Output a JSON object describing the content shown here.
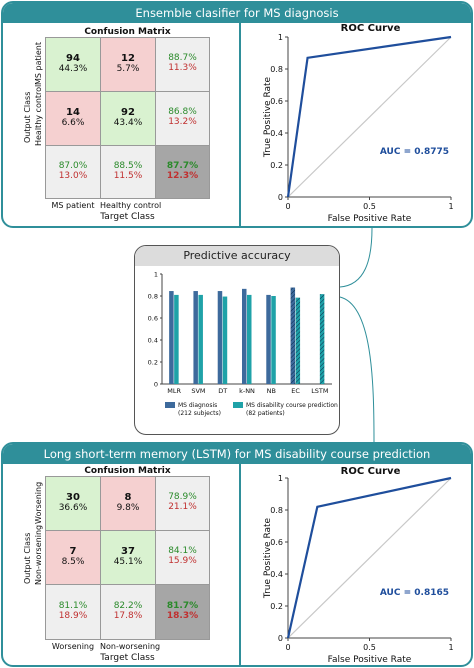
{
  "panels": {
    "top_title": "Ensemble clasifier for MS diagnosis",
    "bottom_title": "Long short-term memory (LSTM) for MS disability course prediction",
    "middle_title": "Predictive accuracy"
  },
  "chart_data": [
    {
      "type": "table",
      "title": "Confusion Matrix",
      "ylabel": "Output Class",
      "xlabel": "Target Class",
      "row_labels": [
        "MS patient",
        "Healthy control"
      ],
      "col_labels": [
        "MS patient",
        "Healthy control"
      ],
      "cells": [
        [
          {
            "n": "94",
            "p": "44.3%"
          },
          {
            "n": "12",
            "p": "5.7%"
          },
          {
            "g": "88.7%",
            "r": "11.3%"
          }
        ],
        [
          {
            "n": "14",
            "p": "6.6%"
          },
          {
            "n": "92",
            "p": "43.4%"
          },
          {
            "g": "86.8%",
            "r": "13.2%"
          }
        ],
        [
          {
            "g": "87.0%",
            "r": "13.0%"
          },
          {
            "g": "88.5%",
            "r": "11.5%"
          },
          {
            "g": "87.7%",
            "r": "12.3%"
          }
        ]
      ]
    },
    {
      "type": "line",
      "title": "ROC Curve",
      "xlabel": "False Positive Rate",
      "ylabel": "True Positive Rate",
      "x": [
        0,
        0.12,
        1
      ],
      "y": [
        0,
        0.87,
        1
      ],
      "xlim": [
        0,
        1
      ],
      "ylim": [
        0,
        1
      ],
      "xticks": [
        "0",
        "0.5",
        "1"
      ],
      "yticks": [
        "0",
        "0.2",
        "0.4",
        "0.6",
        "0.8",
        "1"
      ],
      "annotation": "AUC = 0.8775",
      "line_color": "#1f4e9c",
      "diagonal_color": "#c8c8c8"
    },
    {
      "type": "bar",
      "categories": [
        "MLR",
        "SVM",
        "DT",
        "k-NN",
        "NB",
        "EC",
        "LSTM"
      ],
      "series": [
        {
          "name": "MS diagnosis (212 subjects)",
          "values": [
            0.845,
            0.845,
            0.845,
            0.865,
            0.81,
            0.877,
            null
          ],
          "color": "#3d6a9c"
        },
        {
          "name": "MS disability course prediction (82 patients)",
          "values": [
            0.81,
            0.81,
            0.795,
            0.81,
            0.8,
            0.785,
            0.817
          ],
          "color": "#1fa2a8"
        }
      ],
      "hatched_categories": [
        "EC",
        "LSTM"
      ],
      "ylim": [
        0,
        1
      ],
      "yticks": [
        "0",
        "0.2",
        "0.4",
        "0.6",
        "0.8",
        "1"
      ],
      "legend": "bottom"
    },
    {
      "type": "table",
      "title": "Confusion Matrix",
      "ylabel": "Output Class",
      "xlabel": "Target Class",
      "row_labels": [
        "Worsening",
        "Non-worsening"
      ],
      "col_labels": [
        "Worsening",
        "Non-worsening"
      ],
      "cells": [
        [
          {
            "n": "30",
            "p": "36.6%"
          },
          {
            "n": "8",
            "p": "9.8%"
          },
          {
            "g": "78.9%",
            "r": "21.1%"
          }
        ],
        [
          {
            "n": "7",
            "p": "8.5%"
          },
          {
            "n": "37",
            "p": "45.1%"
          },
          {
            "g": "84.1%",
            "r": "15.9%"
          }
        ],
        [
          {
            "g": "81.1%",
            "r": "18.9%"
          },
          {
            "g": "82.2%",
            "r": "17.8%"
          },
          {
            "g": "81.7%",
            "r": "18.3%"
          }
        ]
      ]
    },
    {
      "type": "line",
      "title": "ROC Curve",
      "xlabel": "False Positive Rate",
      "ylabel": "True Positive Rate",
      "x": [
        0,
        0.18,
        1
      ],
      "y": [
        0,
        0.82,
        1
      ],
      "xlim": [
        0,
        1
      ],
      "ylim": [
        0,
        1
      ],
      "xticks": [
        "0",
        "0.5",
        "1"
      ],
      "yticks": [
        "0",
        "0.2",
        "0.4",
        "0.6",
        "0.8",
        "1"
      ],
      "annotation": "AUC = 0.8165",
      "line_color": "#1f4e9c",
      "diagonal_color": "#c8c8c8"
    }
  ]
}
